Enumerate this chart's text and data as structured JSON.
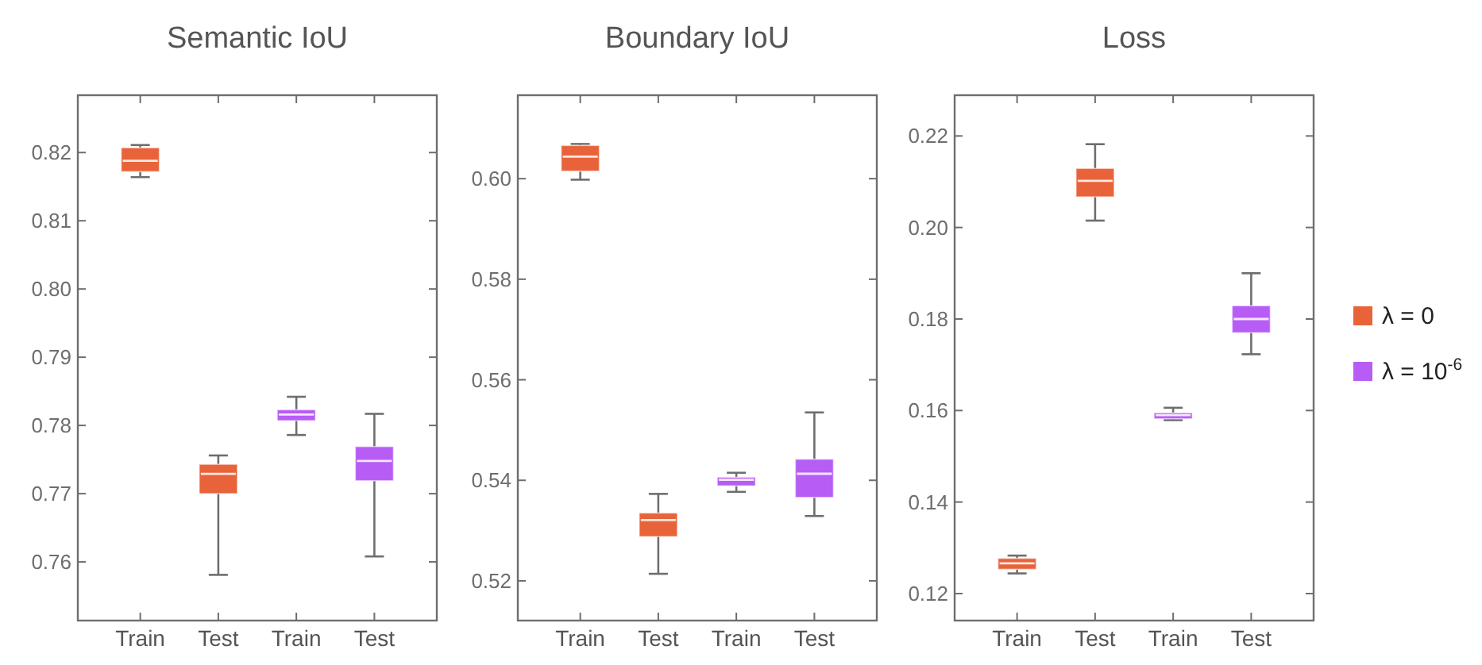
{
  "chart_data": [
    {
      "type": "box",
      "title": "Semantic IoU",
      "categories": [
        "Train",
        "Test",
        "Train",
        "Test"
      ],
      "ylim": [
        0.7514,
        0.8284
      ],
      "yticks": [
        0.76,
        0.77,
        0.78,
        0.79,
        {
          "value": 0.8,
          "label": "0.80"
        },
        0.81,
        0.82
      ],
      "series": [
        {
          "color": "#e8633a",
          "boxes": [
            {
              "low": 0.8164,
              "q1": 0.8172,
              "median": 0.8188,
              "q3": 0.8207,
              "high": 0.8211
            },
            {
              "low": 0.7581,
              "q1": 0.77,
              "median": 0.7729,
              "q3": 0.7743,
              "high": 0.7756
            },
            null,
            null
          ]
        },
        {
          "color": "#b75cf5",
          "boxes": [
            null,
            null,
            {
              "low": 0.7786,
              "q1": 0.7807,
              "median": 0.7816,
              "q3": 0.7823,
              "high": 0.7842
            },
            {
              "low": 0.7608,
              "q1": 0.7719,
              "median": 0.7748,
              "q3": 0.7769,
              "high": 0.7817
            }
          ]
        }
      ]
    },
    {
      "type": "box",
      "title": "Boundary IoU",
      "categories": [
        "Train",
        "Test",
        "Train",
        "Test"
      ],
      "ylim": [
        0.5121,
        0.6166
      ],
      "yticks": [
        0.52,
        0.54,
        0.56,
        0.58,
        {
          "value": 0.6,
          "label": "0.60"
        }
      ],
      "series": [
        {
          "color": "#e8633a",
          "boxes": [
            {
              "low": 0.5998,
              "q1": 0.6015,
              "median": 0.6044,
              "q3": 0.6066,
              "high": 0.6069
            },
            {
              "low": 0.5214,
              "q1": 0.5288,
              "median": 0.5321,
              "q3": 0.5335,
              "high": 0.5373
            },
            null,
            null
          ]
        },
        {
          "color": "#b75cf5",
          "boxes": [
            null,
            null,
            {
              "low": 0.5377,
              "q1": 0.5389,
              "median": 0.5401,
              "q3": 0.5406,
              "high": 0.5415
            },
            {
              "low": 0.5329,
              "q1": 0.5366,
              "median": 0.5413,
              "q3": 0.5442,
              "high": 0.5535
            }
          ]
        }
      ]
    },
    {
      "type": "box",
      "title": "Loss",
      "categories": [
        "Train",
        "Test",
        "Train",
        "Test"
      ],
      "ylim": [
        0.1141,
        0.2289
      ],
      "yticks": [
        0.12,
        0.14,
        0.16,
        0.18,
        {
          "value": 0.2,
          "label": "0.20"
        },
        0.22
      ],
      "legend": "right",
      "series": [
        {
          "name": "λ = 0",
          "color": "#e8633a",
          "boxes": [
            {
              "low": 0.1244,
              "q1": 0.1253,
              "median": 0.1266,
              "q3": 0.1277,
              "high": 0.1283
            },
            {
              "low": 0.2015,
              "q1": 0.2067,
              "median": 0.2102,
              "q3": 0.2129,
              "high": 0.2182
            },
            null,
            null
          ]
        },
        {
          "name": "λ = 10$^{-6}$",
          "color": "#b75cf5",
          "boxes": [
            null,
            null,
            {
              "low": 0.1579,
              "q1": 0.1582,
              "median": 0.159,
              "q3": 0.1595,
              "high": 0.1606
            },
            {
              "low": 0.1723,
              "q1": 0.177,
              "median": 0.18,
              "q3": 0.1829,
              "high": 0.19
            }
          ]
        }
      ]
    }
  ]
}
